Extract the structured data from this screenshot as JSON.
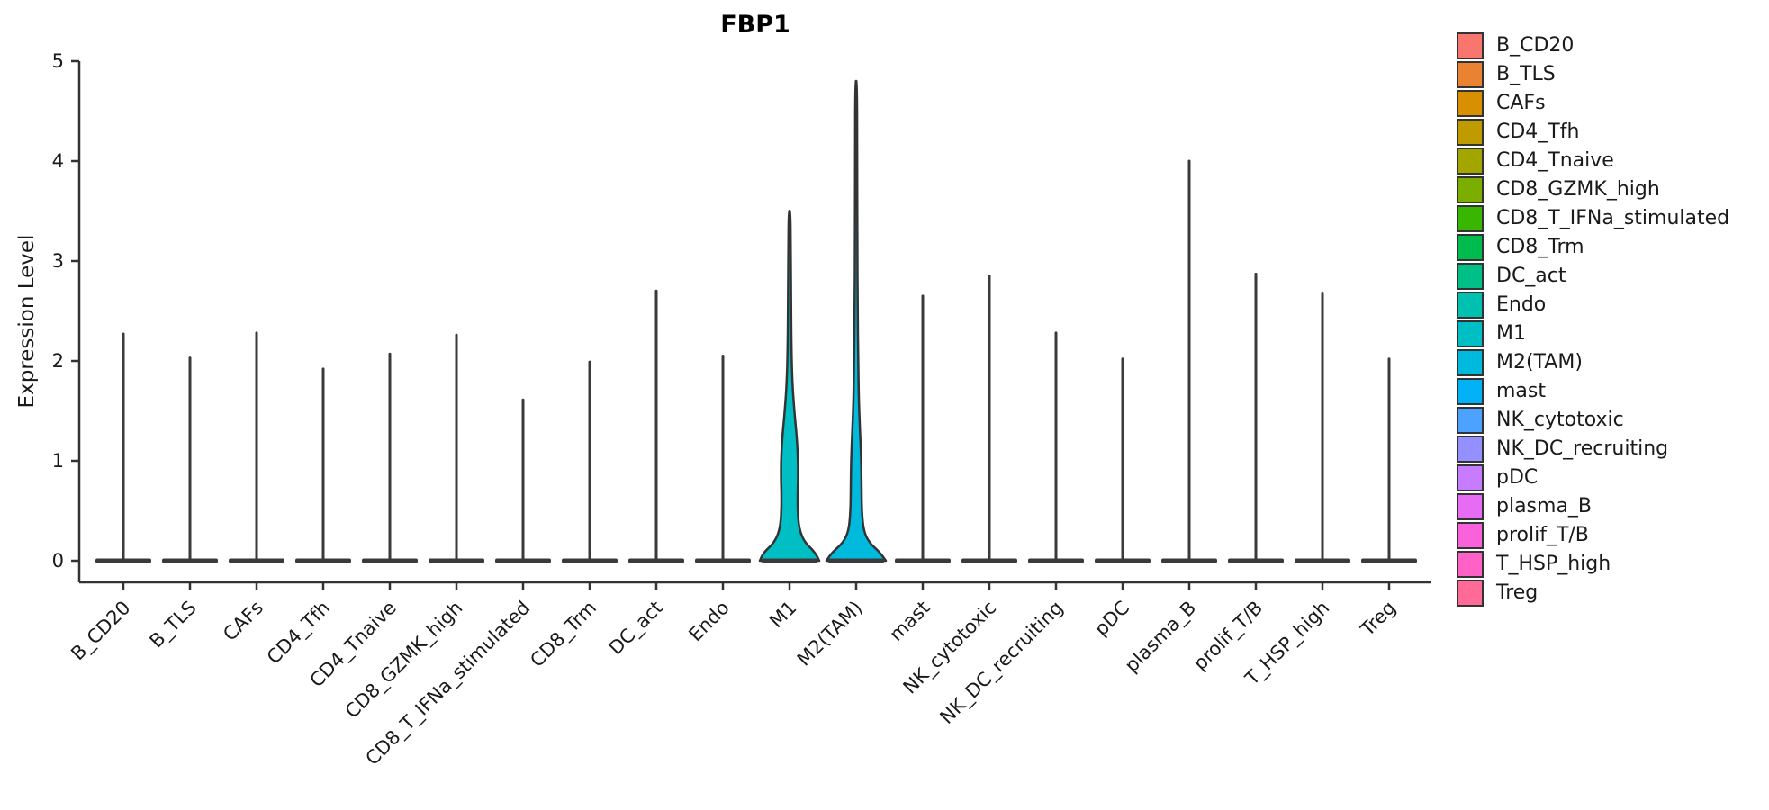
{
  "title": "FBP1",
  "chart_data": {
    "type": "violin",
    "title": "FBP1",
    "xlabel": "",
    "ylabel": "Expression Level",
    "ylim": [
      0,
      5
    ],
    "yticks": [
      0,
      1,
      2,
      3,
      4,
      5
    ],
    "legend_position": "right",
    "grid": false,
    "categories": [
      "B_CD20",
      "B_TLS",
      "CAFs",
      "CD4_Tfh",
      "CD4_Tnaive",
      "CD8_GZMK_high",
      "CD8_T_IFNa_stimulated",
      "CD8_Trm",
      "DC_act",
      "Endo",
      "M1",
      "M2(TAM)",
      "mast",
      "NK_cytotoxic",
      "NK_DC_recruiting",
      "pDC",
      "plasma_B",
      "prolif_T/B",
      "T_HSP_high",
      "Treg"
    ],
    "colors": [
      "#F8766D",
      "#EA8331",
      "#D89000",
      "#C09B00",
      "#A3A500",
      "#7CAE00",
      "#39B600",
      "#00BB4E",
      "#00C087",
      "#00C0AF",
      "#00BFC4",
      "#00BADE",
      "#00B1F5",
      "#4EA2FF",
      "#9590FF",
      "#C77CFF",
      "#E76BF3",
      "#FA62DB",
      "#FF61C7",
      "#FF6A97"
    ],
    "max_expression_values": [
      2.27,
      2.03,
      2.28,
      1.92,
      2.07,
      2.26,
      1.61,
      1.99,
      2.7,
      2.05,
      3.5,
      4.8,
      2.65,
      2.85,
      2.28,
      2.02,
      4.0,
      2.87,
      2.68,
      2.02
    ],
    "note": "All populations collapse to a flat violin at 0 with a thin density spike except M1 and M2(TAM), which show visible expression bodies.",
    "violin_bodies": [
      {
        "category": "M1",
        "fill": "#00BFC4",
        "peak": 3.5,
        "profile": [
          [
            0,
            1.0
          ],
          [
            0.08,
            0.88
          ],
          [
            0.18,
            0.52
          ],
          [
            0.3,
            0.34
          ],
          [
            0.45,
            0.28
          ],
          [
            0.65,
            0.27
          ],
          [
            0.85,
            0.29
          ],
          [
            1.05,
            0.28
          ],
          [
            1.25,
            0.24
          ],
          [
            1.5,
            0.16
          ],
          [
            1.8,
            0.09
          ],
          [
            2.2,
            0.06
          ],
          [
            2.7,
            0.05
          ],
          [
            3.1,
            0.04
          ],
          [
            3.5,
            0.03
          ]
        ]
      },
      {
        "category": "M2(TAM)",
        "fill": "#00BADE",
        "peak": 4.8,
        "profile": [
          [
            0,
            1.0
          ],
          [
            0.08,
            0.82
          ],
          [
            0.18,
            0.44
          ],
          [
            0.3,
            0.25
          ],
          [
            0.5,
            0.19
          ],
          [
            0.75,
            0.18
          ],
          [
            1.0,
            0.17
          ],
          [
            1.3,
            0.13
          ],
          [
            1.6,
            0.09
          ],
          [
            2.0,
            0.07
          ],
          [
            2.5,
            0.05
          ],
          [
            3.2,
            0.04
          ],
          [
            4.0,
            0.035
          ],
          [
            4.8,
            0.03
          ]
        ]
      }
    ]
  },
  "legend": {
    "entries": [
      "B_CD20",
      "B_TLS",
      "CAFs",
      "CD4_Tfh",
      "CD4_Tnaive",
      "CD8_GZMK_high",
      "CD8_T_IFNa_stimulated",
      "CD8_Trm",
      "DC_act",
      "Endo",
      "M1",
      "M2(TAM)",
      "mast",
      "NK_cytotoxic",
      "NK_DC_recruiting",
      "pDC",
      "plasma_B",
      "prolif_T/B",
      "T_HSP_high",
      "Treg"
    ]
  }
}
